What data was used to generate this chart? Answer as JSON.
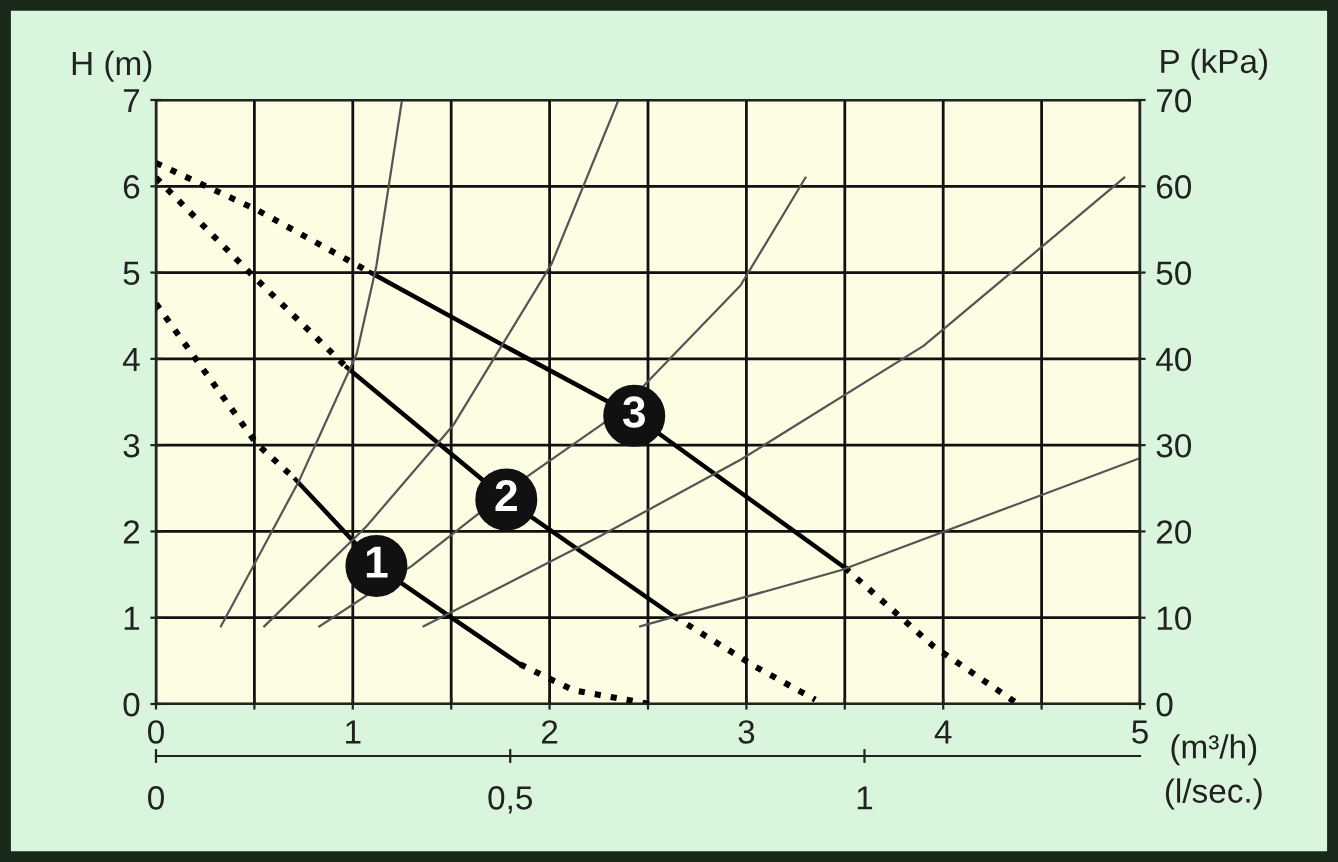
{
  "chart_data": {
    "type": "line",
    "xlabel": "(m³/h)",
    "ylabel": "H (m)",
    "y2label": "P (kPa)",
    "x2label": "(l/sec.)",
    "xlim": [
      0,
      5
    ],
    "xticks": [
      0,
      {
        "value": 0.5,
        "label": null
      },
      1,
      {
        "value": 1.5,
        "label": null
      },
      2,
      {
        "value": 2.5,
        "label": null
      },
      3,
      {
        "value": 3.5,
        "label": null
      },
      4,
      {
        "value": 4.5,
        "label": null
      },
      5
    ],
    "ylim": [
      0,
      7
    ],
    "yticks": [
      0,
      1,
      2,
      3,
      4,
      5,
      6,
      7
    ],
    "y2lim": [
      0,
      70
    ],
    "y2ticks": [
      0,
      10,
      20,
      30,
      40,
      50,
      60,
      70
    ],
    "x2lim": [
      0,
      1.3889
    ],
    "x2ticks": [
      0,
      {
        "value": 0.5,
        "label": "0,5"
      },
      1
    ],
    "grid": true,
    "marker": "none",
    "series": [
      {
        "color": "#000000",
        "line_style": "dotted",
        "x": [
          0,
          0.51,
          0.71
        ],
        "values": [
          4.64,
          3.02,
          2.6
        ]
      },
      {
        "color": "#000000",
        "line_style": "solid",
        "x": [
          0.71,
          1.12,
          1.47,
          1.85
        ],
        "values": [
          2.6,
          1.6,
          1.05,
          0.46
        ]
      },
      {
        "color": "#000000",
        "line_style": "dotted",
        "x": [
          1.85,
          2.12,
          2.51
        ],
        "values": [
          0.46,
          0.16,
          0.0
        ]
      },
      {
        "color": "#000000",
        "line_style": "dotted",
        "x": [
          0,
          0.48,
          0.97
        ],
        "values": [
          6.1,
          4.99,
          3.9
        ]
      },
      {
        "color": "#000000",
        "line_style": "solid",
        "x": [
          0.97,
          1.78,
          2.63
        ],
        "values": [
          3.9,
          2.37,
          1.02
        ]
      },
      {
        "color": "#000000",
        "line_style": "dotted",
        "x": [
          2.63,
          3.04,
          3.35
        ],
        "values": [
          1.02,
          0.44,
          0.05
        ]
      },
      {
        "color": "#000000",
        "line_style": "dotted",
        "x": [
          0,
          0.51,
          1.09
        ],
        "values": [
          6.27,
          5.73,
          5.0
        ]
      },
      {
        "color": "#000000",
        "line_style": "solid",
        "x": [
          1.09,
          1.77,
          2.43,
          3.5
        ],
        "values": [
          5.0,
          4.15,
          3.34,
          1.58
        ]
      },
      {
        "color": "#000000",
        "line_style": "dotted",
        "x": [
          3.5,
          3.95,
          4.38
        ],
        "values": [
          1.58,
          0.67,
          0.0
        ]
      },
      {
        "color": "#555555",
        "line_style": "solid",
        "x": [
          0.33,
          0.73,
          1.02,
          1.12,
          1.25
        ],
        "values": [
          0.9,
          2.6,
          4.06,
          5.08,
          7.0
        ]
      },
      {
        "color": "#555555",
        "line_style": "solid",
        "x": [
          0.55,
          1.07,
          1.51,
          2.01,
          2.35
        ],
        "values": [
          0.9,
          2.06,
          3.23,
          5.1,
          7.0
        ]
      },
      {
        "color": "#555555",
        "line_style": "solid",
        "x": [
          0.83,
          1.3,
          1.82,
          2.34,
          2.97,
          3.3
        ],
        "values": [
          0.9,
          1.6,
          2.53,
          3.36,
          4.85,
          6.1
        ]
      },
      {
        "color": "#555555",
        "line_style": "solid",
        "x": [
          1.36,
          2.26,
          2.97,
          3.9,
          4.92
        ],
        "values": [
          0.9,
          1.95,
          2.83,
          4.15,
          6.1
        ]
      },
      {
        "color": "#555555",
        "line_style": "solid",
        "x": [
          2.46,
          3.48,
          5.0
        ],
        "values": [
          0.9,
          1.55,
          2.85
        ]
      }
    ],
    "annotations": [
      {
        "text": "1",
        "x": 1.12,
        "y": 1.6
      },
      {
        "text": "2",
        "x": 1.78,
        "y": 2.37
      },
      {
        "text": "3",
        "x": 2.43,
        "y": 3.34
      }
    ]
  }
}
